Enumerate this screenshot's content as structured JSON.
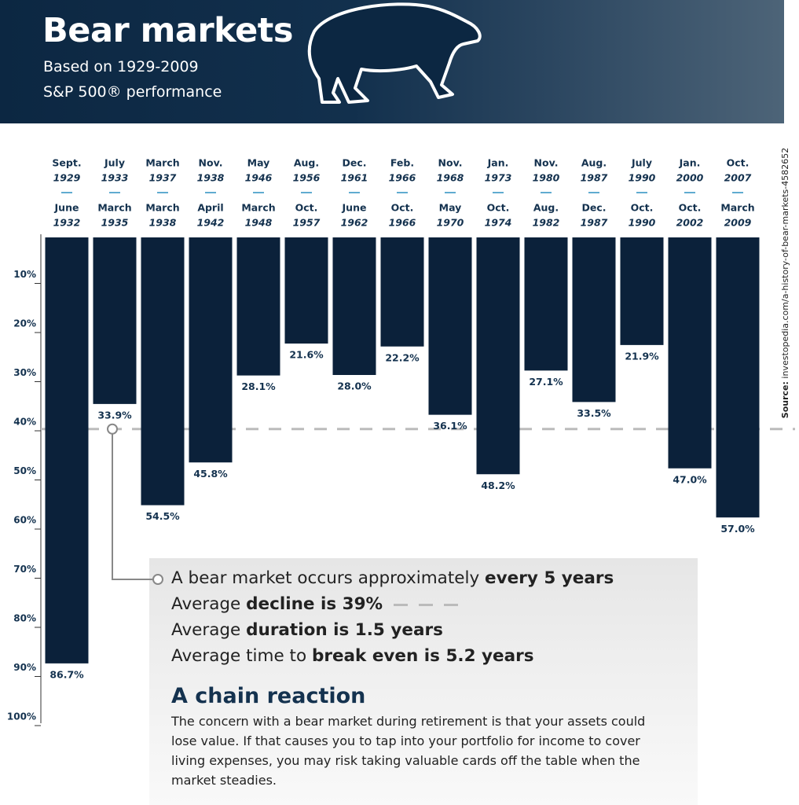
{
  "header": {
    "title": "Bear markets",
    "subtitle_lines": [
      "Based on 1929-2009",
      "S&P 500® performance"
    ]
  },
  "chart_data": {
    "type": "bar",
    "start_months": [
      "Sept.",
      "July",
      "March",
      "Nov.",
      "May",
      "Aug.",
      "Dec.",
      "Feb.",
      "Nov.",
      "Jan.",
      "Nov.",
      "Aug.",
      "July",
      "Jan.",
      "Oct."
    ],
    "start_years": [
      "1929",
      "1933",
      "1937",
      "1938",
      "1946",
      "1956",
      "1961",
      "1966",
      "1968",
      "1973",
      "1980",
      "1987",
      "1990",
      "2000",
      "2007"
    ],
    "end_months": [
      "June",
      "March",
      "March",
      "April",
      "March",
      "Oct.",
      "June",
      "Oct.",
      "May",
      "Oct.",
      "Aug.",
      "Dec.",
      "Oct.",
      "Oct.",
      "March"
    ],
    "end_years": [
      "1932",
      "1935",
      "1938",
      "1942",
      "1948",
      "1957",
      "1962",
      "1966",
      "1970",
      "1974",
      "1982",
      "1987",
      "1990",
      "2002",
      "2009"
    ],
    "values": [
      86.7,
      33.9,
      54.5,
      45.8,
      28.1,
      21.6,
      28.0,
      22.2,
      36.1,
      48.2,
      27.1,
      33.5,
      21.9,
      47.0,
      57.0
    ],
    "value_labels": [
      "86.7%",
      "33.9%",
      "54.5%",
      "45.8%",
      "28.1%",
      "21.6%",
      "28.0%",
      "22.2%",
      "36.1%",
      "48.2%",
      "27.1%",
      "33.5%",
      "21.9%",
      "47.0%",
      "57.0%"
    ],
    "color": "#0b213a",
    "ylim": [
      0,
      100
    ],
    "yticks": [
      {
        "value": 10,
        "label": "10%"
      },
      {
        "value": 20,
        "label": "20%"
      },
      {
        "value": 30,
        "label": "30%"
      },
      {
        "value": 40,
        "label": "40%"
      },
      {
        "value": 50,
        "label": "50%"
      },
      {
        "value": 60,
        "label": "60%"
      },
      {
        "value": 70,
        "label": "70%"
      },
      {
        "value": 80,
        "label": "80%"
      },
      {
        "value": 90,
        "label": "90%"
      },
      {
        "value": 100,
        "label": "100%"
      }
    ],
    "average": 39,
    "source_label": "Source:",
    "source": "investopedia.com/a-history-of-bear-markets-4582652"
  },
  "facts": [
    [
      "A bear market occurs approximately ",
      "every 5 years"
    ],
    [
      "Average ",
      "decline is 39%"
    ],
    [
      "Average ",
      "duration is 1.5 years"
    ],
    [
      "Average time to ",
      "break even is 5.2 years"
    ]
  ],
  "chain": {
    "heading": "A chain reaction",
    "text": "The concern with a bear market during retirement is that your assets could lose value. If that causes you to tap into your portfolio for income to cover living expenses, you may risk taking valuable cards off the table when the market steadies."
  }
}
